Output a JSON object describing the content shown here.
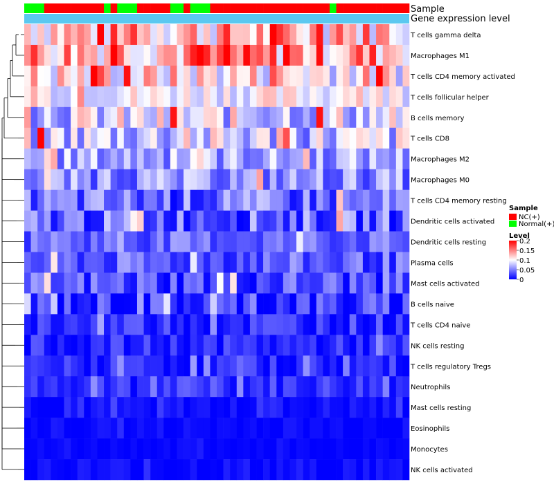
{
  "chart_data": {
    "type": "heatmap",
    "title": "",
    "sample_track_label": "Sample",
    "level_track_label": "Gene expression level",
    "legend": {
      "sample_title": "Sample",
      "sample_entries": [
        {
          "label": "NC(+)",
          "color": "#ff0000"
        },
        {
          "label": "Normal(+)",
          "color": "#00ff00"
        }
      ],
      "level_title": "Level",
      "level_ticks": [
        "0.2",
        "0.15",
        "0.1",
        "0.05",
        "0"
      ],
      "level_tick_values": [
        0.2,
        0.15,
        0.1,
        0.05,
        0
      ],
      "placement": "right"
    },
    "colors": {
      "low": "#0000ff",
      "mid": "#ffffff",
      "high": "#ff0000",
      "level_track": "#5bc8f0"
    },
    "value_range": [
      0,
      0.2
    ],
    "sample_groups": [
      "N",
      "N",
      "N",
      "C",
      "C",
      "C",
      "C",
      "C",
      "C",
      "C",
      "C",
      "C",
      "N",
      "C",
      "N",
      "N",
      "N",
      "C",
      "C",
      "C",
      "C",
      "C",
      "N",
      "N",
      "C",
      "N",
      "N",
      "N",
      "C",
      "C",
      "C",
      "C",
      "C",
      "C",
      "C",
      "C",
      "C",
      "C",
      "C",
      "C",
      "C",
      "C",
      "C",
      "C",
      "C",
      "C",
      "N",
      "C",
      "C",
      "C",
      "C",
      "C",
      "C",
      "C",
      "C",
      "C",
      "C",
      "C"
    ],
    "rows": [
      "T cells gamma delta",
      "Macrophages M1",
      "T cells CD4 memory activated",
      "T cells follicular helper",
      "B cells memory",
      "T cells CD8",
      "Macrophages M2",
      "Macrophages M0",
      "T cells CD4 memory resting",
      "Dendritic cells activated",
      "Dendritic cells resting",
      "Plasma cells",
      "Mast cells activated",
      "B cells naive",
      "T cells CD4 naive",
      "NK cells resting",
      "T cells regulatory  Tregs",
      "Neutrophils",
      "Mast cells resting",
      "Eosinophils",
      "Monocytes",
      "NK cells activated"
    ],
    "n_samples": 58,
    "base_levels": [
      0.13,
      0.14,
      0.11,
      0.1,
      0.085,
      0.08,
      0.065,
      0.055,
      0.04,
      0.04,
      0.04,
      0.035,
      0.03,
      0.02,
      0.02,
      0.015,
      0.015,
      0.02,
      0.005,
      0.003,
      0.002,
      0.004
    ],
    "spread": [
      0.06,
      0.06,
      0.05,
      0.03,
      0.05,
      0.05,
      0.035,
      0.035,
      0.04,
      0.04,
      0.025,
      0.03,
      0.035,
      0.035,
      0.025,
      0.02,
      0.02,
      0.02,
      0.01,
      0.008,
      0.004,
      0.01
    ],
    "seed": 7
  }
}
